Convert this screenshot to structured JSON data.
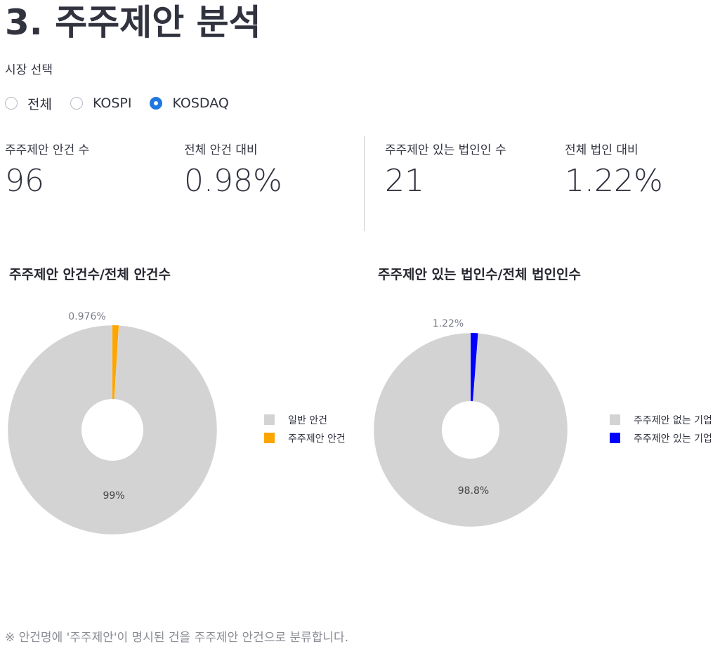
{
  "page": {
    "title": "3. 주주제안 분석",
    "market_label": "시장 선택",
    "footnote": "※ 안건명에 '주주제안'이 명시된 건을 주주제안 안건으로 분류합니다."
  },
  "market_options": [
    {
      "label": "전체",
      "checked": false
    },
    {
      "label": "KOSPI",
      "checked": false
    },
    {
      "label": "KOSDAQ",
      "checked": true
    }
  ],
  "metrics": [
    {
      "label": "주주제안 안건 수",
      "value": "96"
    },
    {
      "label": "전체 안건 대비",
      "value": "0.98%"
    },
    {
      "label": "주주제안 있는 법인인 수",
      "value": "21"
    },
    {
      "label": "전체 법인 대비",
      "value": "1.22%"
    }
  ],
  "colors": {
    "gray_slice": "#d3d3d3",
    "orange_slice": "#ffa500",
    "blue_slice": "#0000ff",
    "radio_accent": "#1f77e0"
  },
  "chart_data": [
    {
      "type": "pie",
      "title": "주주제안 안건수/전체 안건수",
      "categories": [
        "일반 안건",
        "주주제안 안건"
      ],
      "values": [
        99.024,
        0.976
      ],
      "labels": [
        "99%",
        "0.976%"
      ],
      "colors": [
        "#d3d3d3",
        "#ffa500"
      ],
      "hole": 0.3,
      "legend": "right"
    },
    {
      "type": "pie",
      "title": "주주제안 있는 법인수/전체 법인인수",
      "categories": [
        "주주제안 없는 기업",
        "주주제안 있는 기업"
      ],
      "values": [
        98.78,
        1.22
      ],
      "labels": [
        "98.8%",
        "1.22%"
      ],
      "colors": [
        "#d3d3d3",
        "#0000ff"
      ],
      "hole": 0.35,
      "legend": "right"
    }
  ]
}
